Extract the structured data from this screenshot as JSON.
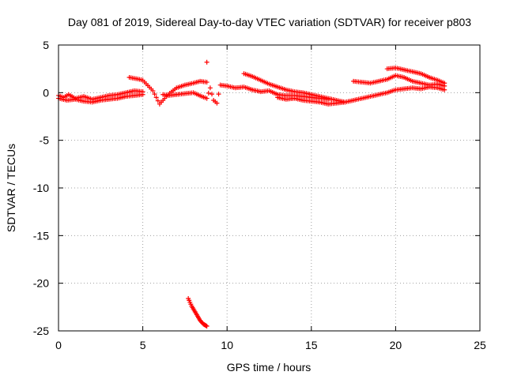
{
  "chart_data": {
    "type": "scatter",
    "title": "Day 081 of 2019, Sidereal Day-to-day VTEC variation (SDTVAR) for receiver p803",
    "xlabel": "GPS time / hours",
    "ylabel": "SDTVAR / TECUs",
    "xlim": [
      0,
      25
    ],
    "ylim": [
      -25,
      5
    ],
    "xticks": [
      "0",
      "5",
      "10",
      "15",
      "20",
      "25"
    ],
    "yticks": [
      "5",
      "0",
      "-5",
      "-10",
      "-15",
      "-20",
      "-25"
    ],
    "grid": true,
    "marker": "+",
    "series": [
      {
        "name": "SDTVAR",
        "color": "#ff0000",
        "x": [
          0.0,
          0.3,
          0.6,
          1.0,
          1.5,
          2.0,
          2.5,
          3.0,
          3.5,
          4.0,
          4.5,
          5.0,
          0.0,
          0.5,
          1.0,
          1.5,
          2.0,
          2.5,
          3.0,
          3.5,
          4.0,
          4.5,
          5.0,
          4.2,
          4.5,
          4.8,
          5.0,
          5.6,
          5.8,
          6.0,
          6.2,
          6.5,
          7.0,
          7.5,
          8.0,
          8.4,
          8.8,
          6.2,
          6.5,
          7.0,
          7.5,
          8.0,
          8.5,
          8.8,
          9.0,
          9.2,
          9.4,
          9.6,
          10.0,
          10.5,
          11.0,
          11.5,
          12.0,
          12.5,
          13.0,
          13.5,
          14.0,
          14.5,
          15.0,
          15.5,
          16.0,
          11.0,
          11.5,
          12.0,
          12.5,
          13.0,
          13.5,
          14.0,
          14.5,
          15.0,
          15.5,
          16.0,
          16.5,
          17.0,
          13.0,
          13.5,
          14.0,
          14.5,
          15.0,
          15.5,
          16.0,
          16.5,
          17.0,
          17.5,
          18.0,
          18.5,
          19.0,
          19.5,
          20.0,
          20.5,
          21.0,
          21.5,
          22.0,
          22.5,
          22.9,
          17.5,
          18.0,
          18.5,
          19.0,
          19.5,
          20.0,
          20.5,
          21.0,
          21.5,
          22.0,
          22.5,
          22.9,
          19.5,
          20.0,
          20.5,
          21.0,
          21.5,
          22.0,
          22.5,
          22.9,
          8.8,
          7.7,
          7.8,
          7.9,
          8.0,
          8.1,
          8.2,
          8.3,
          8.4,
          8.5,
          8.6,
          8.7,
          8.8
        ],
        "y": [
          -0.3,
          -0.5,
          -0.2,
          -0.6,
          -0.4,
          -0.7,
          -0.5,
          -0.3,
          -0.2,
          0.0,
          0.2,
          0.1,
          -0.6,
          -0.8,
          -0.7,
          -0.9,
          -1.0,
          -0.8,
          -0.7,
          -0.6,
          -0.4,
          -0.3,
          -0.2,
          1.6,
          1.5,
          1.4,
          1.3,
          0.2,
          -0.5,
          -1.2,
          -0.8,
          -0.2,
          0.5,
          0.8,
          1.0,
          1.2,
          1.1,
          -0.2,
          -0.3,
          -0.2,
          -0.1,
          0.0,
          -0.4,
          -0.6,
          0.5,
          -0.8,
          -1.1,
          0.8,
          0.7,
          0.5,
          0.6,
          0.3,
          0.1,
          0.2,
          -0.2,
          -0.3,
          -0.3,
          -0.4,
          -0.5,
          -0.6,
          -0.7,
          2.0,
          1.7,
          1.3,
          0.9,
          0.6,
          0.3,
          0.1,
          0.0,
          -0.2,
          -0.4,
          -0.6,
          -0.8,
          -1.0,
          -0.5,
          -0.7,
          -0.6,
          -0.8,
          -0.9,
          -1.0,
          -1.2,
          -1.1,
          -1.0,
          -0.8,
          -0.6,
          -0.4,
          -0.2,
          0.0,
          0.3,
          0.4,
          0.5,
          0.4,
          0.6,
          0.5,
          0.3,
          1.2,
          1.1,
          1.0,
          1.2,
          1.4,
          1.8,
          1.6,
          1.2,
          1.0,
          0.8,
          0.9,
          0.7,
          2.5,
          2.6,
          2.4,
          2.2,
          2.0,
          1.6,
          1.3,
          1.0,
          3.2,
          -21.6,
          -22.0,
          -22.4,
          -22.7,
          -23.0,
          -23.3,
          -23.6,
          -23.9,
          -24.1,
          -24.3,
          -24.4,
          -24.5
        ]
      }
    ]
  }
}
